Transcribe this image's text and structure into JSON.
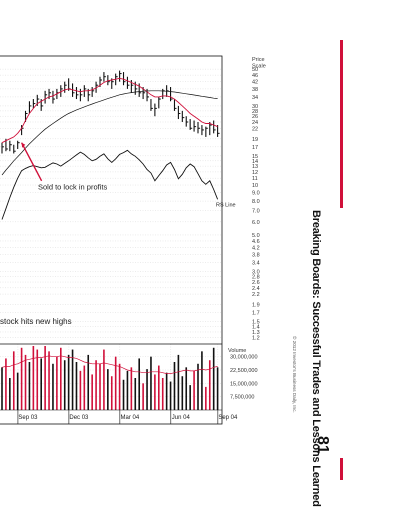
{
  "book": {
    "running_title": "Breaking Boards: Successful Trades and Lessons Learned",
    "page_number": "81",
    "copyright": "© 2012 Investor's Business Daily, Inc."
  },
  "colors": {
    "accent_red": "#d0103a",
    "price_bar": "#111111",
    "moving_average_1": "#d0103a",
    "moving_average_2": "#111111",
    "rs_line": "#111111",
    "grid": "#cfcfcf"
  },
  "chart_data": {
    "type": "line",
    "price_axis": {
      "label": "Price Scale",
      "ticks": [
        50,
        46,
        42,
        38,
        34,
        30,
        28,
        26,
        24,
        22,
        19,
        17,
        15,
        14,
        13,
        12,
        11,
        10,
        9,
        8,
        7,
        6,
        5,
        4.6,
        4.2,
        3.8,
        3.4,
        3.0,
        2.8,
        2.6,
        2.4,
        2.2,
        1.9,
        1.7,
        1.5,
        1.4,
        1.3,
        1.2
      ],
      "scale": "log",
      "range": [
        1.1,
        60
      ]
    },
    "volume_axis": {
      "label": "Volume",
      "ticks": [
        30000000,
        22500000,
        15000000,
        7500000
      ],
      "tick_labels": [
        "30,000,000",
        "22,500,000",
        "15,000,000",
        "7,500,000"
      ],
      "range": [
        0,
        36000000
      ]
    },
    "x_axis": {
      "tick_labels": [
        "Sep 03",
        "Dec 03",
        "Mar 04",
        "Jun 04",
        "Sep 04"
      ],
      "tick_week_index": [
        1,
        14,
        27,
        40,
        52
      ]
    },
    "annotations": [
      {
        "text": "Sold to lock in profits",
        "week_index": 5,
        "price": 18
      },
      {
        "text": "stock hits new highs",
        "price": 1.45
      },
      {
        "text": "RS Line",
        "week_index": 56,
        "price": 7.4
      }
    ],
    "price_bars": {
      "week_index": [
        0,
        1,
        2,
        3,
        4,
        5,
        6,
        7,
        8,
        9,
        10,
        11,
        12,
        13,
        14,
        15,
        16,
        17,
        18,
        19,
        20,
        21,
        22,
        23,
        24,
        25,
        26,
        27,
        28,
        29,
        30,
        31,
        32,
        33,
        34,
        35,
        36,
        37,
        38,
        39,
        40,
        41,
        42,
        43,
        44,
        45,
        46,
        47,
        48,
        49,
        50,
        51,
        52,
        53,
        54,
        55
      ],
      "high": [
        18,
        19,
        18.5,
        17.5,
        18.5,
        23,
        28,
        32,
        33,
        35,
        33,
        37,
        38,
        37,
        38,
        40,
        42,
        44,
        41,
        39,
        38,
        40,
        38,
        39,
        42,
        45,
        48,
        46,
        44,
        47,
        49,
        48,
        45,
        43,
        42,
        41,
        39,
        38,
        33,
        31,
        34,
        38,
        40,
        39,
        33,
        30,
        28,
        26,
        25,
        24.5,
        24,
        23,
        22.5,
        24,
        24.5,
        23
      ],
      "low": [
        15.5,
        16,
        16,
        15.5,
        16.5,
        20,
        24,
        27,
        29,
        30,
        28,
        31,
        33,
        31,
        33,
        34,
        36,
        37,
        34,
        33,
        32,
        34,
        32,
        34,
        36,
        39,
        42,
        40,
        38,
        40,
        42,
        40,
        38,
        36,
        35,
        34,
        33,
        32,
        28,
        26,
        29,
        33,
        34,
        32,
        28,
        25,
        24,
        22.5,
        21.5,
        21,
        20.5,
        20,
        19.5,
        20,
        20.5,
        19.5
      ],
      "close": [
        17,
        16.5,
        17.5,
        16,
        18,
        22,
        27,
        30,
        31,
        33,
        30,
        35,
        36,
        33,
        36,
        38,
        40,
        38,
        36,
        35,
        35,
        38,
        35,
        37,
        40,
        43,
        45,
        42,
        42,
        45,
        47,
        42,
        40,
        40,
        38,
        36,
        36,
        34,
        29,
        29,
        33,
        37,
        37,
        33,
        29,
        27,
        25.5,
        24,
        22,
        22.5,
        22,
        21.5,
        22,
        23,
        21.5,
        20.5
      ]
    },
    "moving_average_1": [
      18,
      18.5,
      19,
      19.5,
      20.5,
      22,
      24.5,
      27,
      29,
      31,
      32,
      33,
      34,
      34.5,
      35.5,
      36.5,
      37.5,
      38,
      37.5,
      37,
      36.5,
      37,
      37,
      37.5,
      38.5,
      40,
      41.5,
      42.5,
      43,
      43.5,
      44,
      43.5,
      42.5,
      41.5,
      40.5,
      39.5,
      38,
      36.5,
      35,
      34,
      34,
      34.5,
      34.5,
      34,
      33,
      31.5,
      30,
      28.5,
      27,
      26,
      25,
      24,
      23.5,
      23.5,
      23,
      22.5
    ],
    "moving_average_2": [
      11.5,
      12.3,
      13.1,
      14,
      14.8,
      15.7,
      16.7,
      17.7,
      18.7,
      19.7,
      20.7,
      21.7,
      22.6,
      23.5,
      24.4,
      25.3,
      26.2,
      27,
      27.7,
      28.4,
      29,
      29.6,
      30.2,
      30.8,
      31.4,
      32,
      32.6,
      33.2,
      33.8,
      34.4,
      35,
      35.4,
      35.8,
      36.1,
      36.4,
      36.6,
      36.8,
      36.9,
      37,
      37,
      37,
      36.9,
      36.8,
      36.6,
      36.4,
      36.1,
      35.8,
      35.5,
      35.2,
      34.9,
      34.6,
      34.3,
      34,
      33.7,
      33.4,
      33.2
    ],
    "rs_line": [
      6.2,
      7.2,
      8.4,
      9.7,
      11,
      12.2,
      12.6,
      12.9,
      13.1,
      12.9,
      12.7,
      12.8,
      13.2,
      13.6,
      13.4,
      13,
      13.5,
      14,
      14.6,
      15.2,
      15.8,
      15.3,
      14.6,
      14,
      14.3,
      14.9,
      15.4,
      14.4,
      13.7,
      14.4,
      15.3,
      15.7,
      16.2,
      15.4,
      14.9,
      14.2,
      13.4,
      12.4,
      11.8,
      10.6,
      11.4,
      12.2,
      13.2,
      13.7,
      12.4,
      10.9,
      11.6,
      12.7,
      13.4,
      12.9,
      11.7,
      10.6,
      10.1,
      10.6,
      9.4,
      8.2
    ],
    "volume": {
      "week_index": [
        0,
        1,
        2,
        3,
        4,
        5,
        6,
        7,
        8,
        9,
        10,
        11,
        12,
        13,
        14,
        15,
        16,
        17,
        18,
        19,
        20,
        21,
        22,
        23,
        24,
        25,
        26,
        27,
        28,
        29,
        30,
        31,
        32,
        33,
        34,
        35,
        36,
        37,
        38,
        39,
        40,
        41,
        42,
        43,
        44,
        45,
        46,
        47,
        48,
        49,
        50,
        51,
        52,
        53,
        54,
        55
      ],
      "values": [
        24000000,
        29000000,
        18000000,
        33000000,
        21000000,
        35000000,
        31000000,
        27000000,
        36000000,
        34000000,
        29000000,
        36000000,
        33000000,
        26000000,
        30000000,
        35000000,
        28000000,
        31000000,
        34000000,
        27000000,
        22000000,
        25000000,
        31000000,
        20000000,
        28000000,
        26000000,
        34000000,
        23000000,
        19000000,
        30000000,
        26000000,
        17000000,
        22000000,
        24000000,
        18000000,
        29000000,
        15000000,
        23000000,
        30000000,
        20000000,
        25000000,
        18000000,
        21000000,
        16000000,
        27000000,
        31000000,
        19000000,
        24000000,
        14000000,
        22000000,
        26000000,
        33000000,
        13000000,
        28000000,
        35000000,
        24000000
      ],
      "up_week": [
        false,
        true,
        false,
        true,
        false,
        true,
        true,
        false,
        true,
        true,
        false,
        true,
        true,
        false,
        true,
        true,
        false,
        false,
        false,
        false,
        true,
        true,
        false,
        true,
        true,
        true,
        true,
        false,
        true,
        true,
        true,
        false,
        false,
        true,
        false,
        false,
        true,
        false,
        false,
        true,
        true,
        true,
        false,
        false,
        false,
        false,
        false,
        false,
        false,
        true,
        false,
        false,
        true,
        true,
        false,
        false
      ],
      "average": [
        24000000,
        24500000,
        24500000,
        25500000,
        26000000,
        27000000,
        28000000,
        28500000,
        29000000,
        29500000,
        29500000,
        30000000,
        30500000,
        30000000,
        30000000,
        30500000,
        30000000,
        29500000,
        29500000,
        29000000,
        28000000,
        27000000,
        26500000,
        26000000,
        26000000,
        26000000,
        26500000,
        26000000,
        25500000,
        25000000,
        24500000,
        23500000,
        22500000,
        22000000,
        21500000,
        21500000,
        21000000,
        21000000,
        21500000,
        21500000,
        21500000,
        21000000,
        20500000,
        20500000,
        21000000,
        21500000,
        22000000,
        22500000,
        22000000,
        22000000,
        22500000,
        23000000,
        22500000,
        23000000,
        24000000,
        24500000
      ]
    }
  }
}
